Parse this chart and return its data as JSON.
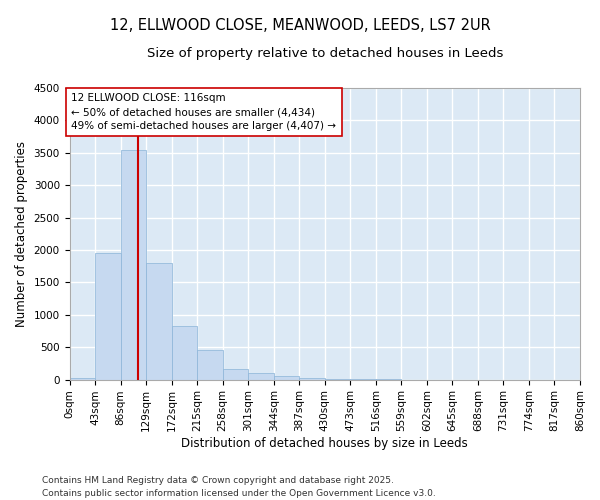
{
  "title_line1": "12, ELLWOOD CLOSE, MEANWOOD, LEEDS, LS7 2UR",
  "title_line2": "Size of property relative to detached houses in Leeds",
  "xlabel": "Distribution of detached houses by size in Leeds",
  "ylabel": "Number of detached properties",
  "bar_color": "#c6d9f0",
  "bar_edge_color": "#8ab4d8",
  "background_color": "#dce9f5",
  "grid_color": "#ffffff",
  "fig_background": "#ffffff",
  "vline_color": "#cc0000",
  "vline_x": 116,
  "annotation_text": "12 ELLWOOD CLOSE: 116sqm\n← 50% of detached houses are smaller (4,434)\n49% of semi-detached houses are larger (4,407) →",
  "annotation_box_facecolor": "#ffffff",
  "annotation_box_edgecolor": "#cc0000",
  "footer_line1": "Contains HM Land Registry data © Crown copyright and database right 2025.",
  "footer_line2": "Contains public sector information licensed under the Open Government Licence v3.0.",
  "bin_edges": [
    0,
    43,
    86,
    129,
    172,
    215,
    258,
    301,
    344,
    387,
    430,
    473,
    516,
    559,
    602,
    645,
    688,
    731,
    774,
    817,
    860
  ],
  "bar_heights": [
    25,
    1950,
    3540,
    1800,
    820,
    450,
    170,
    100,
    60,
    30,
    10,
    5,
    2,
    1,
    0,
    0,
    0,
    0,
    0,
    0
  ],
  "ylim": [
    0,
    4500
  ],
  "yticks": [
    0,
    500,
    1000,
    1500,
    2000,
    2500,
    3000,
    3500,
    4000,
    4500
  ],
  "title_fontsize": 10.5,
  "subtitle_fontsize": 9.5,
  "axis_label_fontsize": 8.5,
  "tick_fontsize": 7.5,
  "annotation_fontsize": 7.5,
  "footer_fontsize": 6.5
}
